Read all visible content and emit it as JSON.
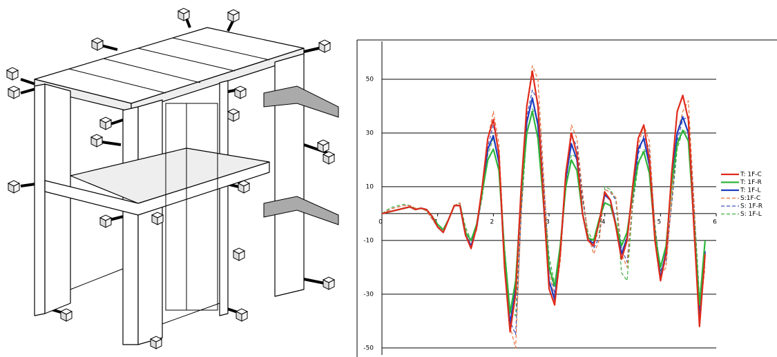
{
  "chart_data": {
    "type": "line",
    "x": [
      0,
      0.1,
      0.2,
      0.3,
      0.4,
      0.5,
      0.6,
      0.7,
      0.8,
      0.9,
      1,
      1.1,
      1.2,
      1.3,
      1.4,
      1.5,
      1.6,
      1.7,
      1.8,
      1.9,
      2,
      2.1,
      2.2,
      2.3,
      2.4,
      2.5,
      2.6,
      2.7,
      2.8,
      2.9,
      3,
      3.1,
      3.2,
      3.3,
      3.4,
      3.5,
      3.6,
      3.7,
      3.8,
      3.9,
      4,
      4.1,
      4.2,
      4.3,
      4.4,
      4.5,
      4.6,
      4.7,
      4.8,
      4.9,
      5,
      5.1,
      5.2,
      5.3,
      5.4,
      5.5,
      5.6,
      5.7,
      5.8
    ],
    "xlim": [
      0,
      6
    ],
    "xticks": [
      0,
      1,
      2,
      3,
      4,
      5,
      6
    ],
    "ylim": [
      -52.6,
      64.1
    ],
    "yticks": [
      -50,
      -30,
      -10,
      10,
      30,
      50
    ],
    "grid": true,
    "series": [
      {
        "name": "T: 1F-C",
        "color": "#e02a1a",
        "dashed": false,
        "values": [
          0,
          0.5,
          1,
          1.5,
          2,
          2.5,
          1.5,
          2,
          1.5,
          -1,
          -5,
          -7,
          -2,
          3,
          3,
          -8,
          -13,
          -5,
          10,
          28,
          35,
          22,
          -20,
          -44,
          -30,
          10,
          40,
          53,
          40,
          5,
          -28,
          -34,
          -15,
          15,
          30,
          22,
          0,
          -10,
          -12,
          -3,
          8,
          5,
          -5,
          -17,
          -10,
          10,
          28,
          33,
          20,
          -10,
          -25,
          -15,
          15,
          38,
          44,
          35,
          -5,
          -42,
          -15
        ]
      },
      {
        "name": "T: 1F-R",
        "color": "#2db53a",
        "dashed": false,
        "values": [
          0,
          0.5,
          1,
          1.5,
          2,
          2.5,
          1.5,
          2,
          1.5,
          -1,
          -4,
          -6,
          -2,
          3,
          3,
          -7,
          -10,
          -4,
          8,
          20,
          24,
          16,
          -14,
          -37,
          -25,
          7,
          30,
          38,
          28,
          4,
          -20,
          -27,
          -12,
          10,
          20,
          16,
          0,
          -9,
          -10,
          -2,
          4,
          3,
          -4,
          -12,
          -7,
          7,
          19,
          23,
          15,
          -8,
          -20,
          -12,
          11,
          26,
          31,
          27,
          -3,
          -34,
          -10
        ]
      },
      {
        "name": "T: 1F-L",
        "color": "#1a3cc0",
        "dashed": false,
        "values": [
          0,
          0.5,
          1,
          1.5,
          2,
          2.5,
          1.5,
          2,
          1.5,
          -1,
          -5,
          -7,
          -2,
          3,
          3,
          -8,
          -12,
          -5,
          9,
          24,
          29,
          19,
          -18,
          -41,
          -28,
          8,
          34,
          43,
          33,
          4,
          -25,
          -32,
          -14,
          13,
          26,
          20,
          0,
          -10,
          -11,
          -3,
          7,
          5,
          -4,
          -15,
          -9,
          9,
          24,
          28,
          18,
          -9,
          -24,
          -14,
          13,
          30,
          36,
          30,
          -4,
          -39,
          -14
        ]
      },
      {
        "name": "S:1F-C",
        "color": "#e8703a",
        "dashed": true,
        "values": [
          0,
          1,
          2,
          2.5,
          3,
          3,
          2,
          2,
          1,
          -2,
          -5,
          -6,
          -2,
          3,
          4,
          -6,
          -12,
          -6,
          8,
          28,
          38,
          26,
          -15,
          -42,
          -50,
          0,
          40,
          55,
          50,
          15,
          -20,
          -33,
          -18,
          12,
          33,
          28,
          8,
          -8,
          -15,
          -10,
          9,
          8,
          6,
          -15,
          -20,
          5,
          25,
          33,
          27,
          -5,
          -23,
          -20,
          5,
          30,
          38,
          42,
          5,
          -38,
          -20
        ]
      },
      {
        "name": "S: 1F-R",
        "color": "#3a4fb8",
        "dashed": true,
        "values": [
          0,
          1,
          2,
          2.5,
          3,
          3,
          2,
          2,
          1,
          -2,
          -5,
          -6,
          -2,
          3,
          4,
          -6,
          -12,
          -6,
          7,
          25,
          33,
          23,
          -14,
          -40,
          -45,
          0,
          36,
          46,
          42,
          12,
          -18,
          -30,
          -16,
          10,
          29,
          25,
          6,
          -8,
          -13,
          -9,
          9,
          8,
          5,
          -13,
          -18,
          4,
          22,
          29,
          24,
          -5,
          -21,
          -18,
          4,
          27,
          35,
          36,
          4,
          -35,
          -18
        ]
      },
      {
        "name": "S: 1F-L",
        "color": "#3fae3f",
        "dashed": true,
        "values": [
          0,
          1.5,
          2.5,
          3,
          3.5,
          3,
          2,
          2,
          1,
          -2,
          -5,
          -6,
          -2,
          3,
          4,
          -5,
          -10,
          -5,
          6,
          22,
          28,
          19,
          -12,
          -36,
          -38,
          0,
          30,
          39,
          35,
          10,
          -16,
          -26,
          -14,
          9,
          22,
          21,
          5,
          -7,
          -10,
          -7,
          10,
          9,
          5,
          -22,
          -25,
          3,
          18,
          24,
          20,
          -4,
          -22,
          -15,
          3,
          24,
          31,
          30,
          4,
          -31,
          -16
        ]
      }
    ]
  }
}
